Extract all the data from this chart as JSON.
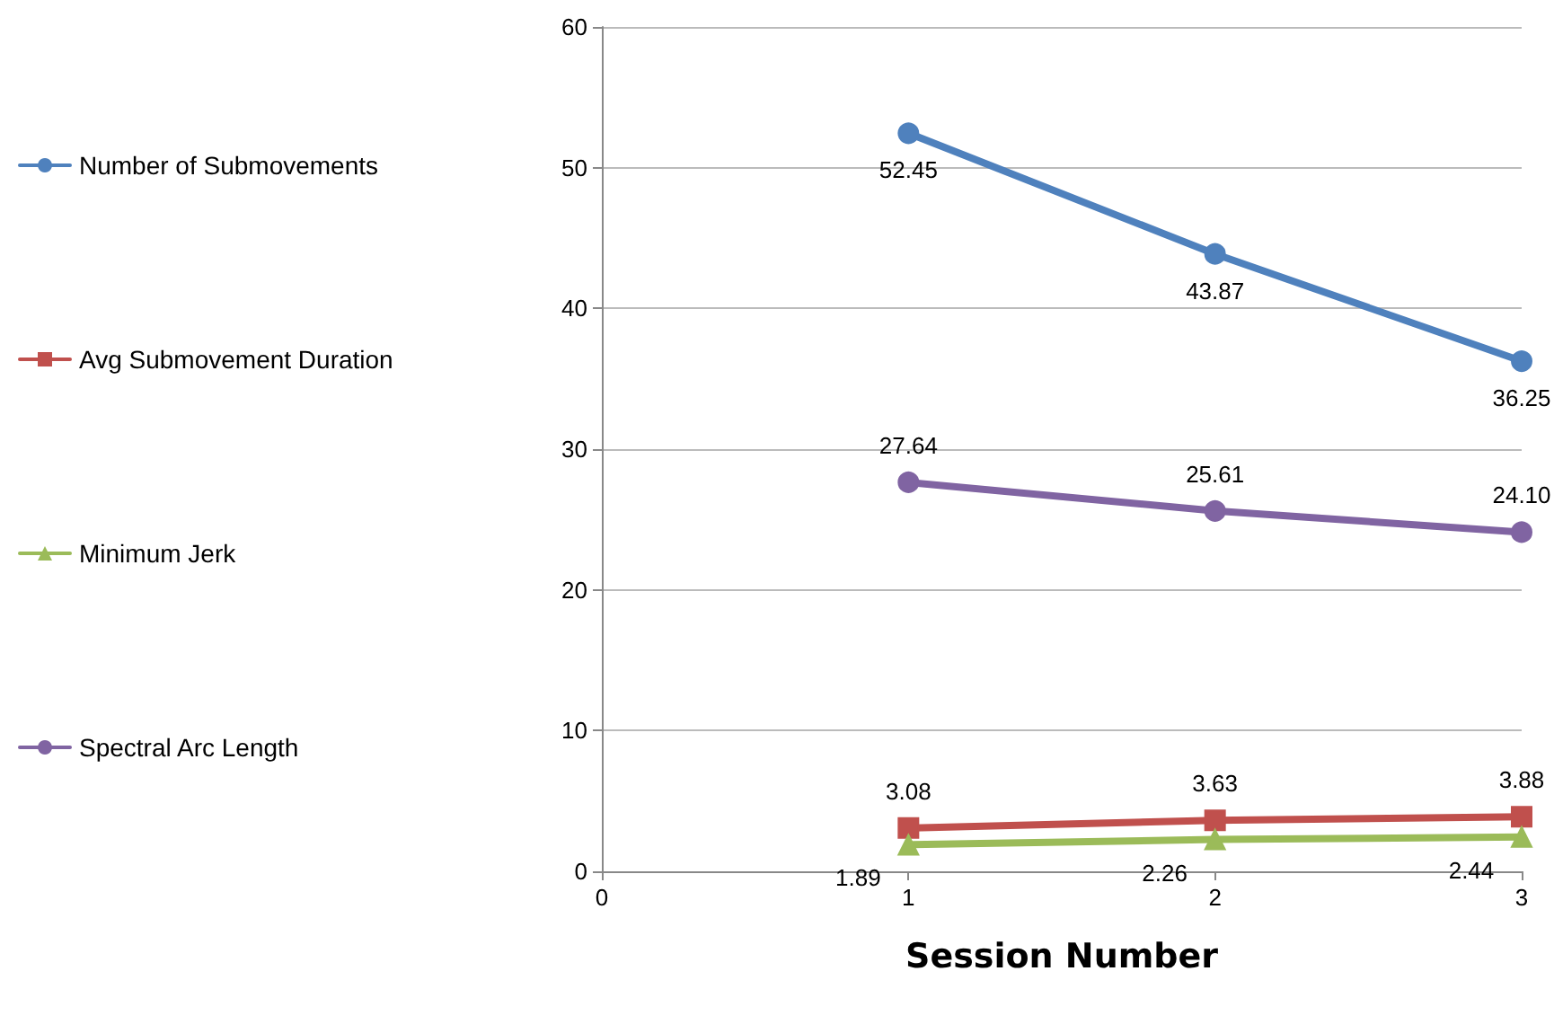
{
  "chart_data": {
    "type": "line",
    "xlabel": "Session Number",
    "x": [
      1,
      2,
      3
    ],
    "xlim": [
      0,
      3
    ],
    "xticks": [
      0,
      1,
      2,
      3
    ],
    "ylim": [
      0,
      60
    ],
    "yticks": [
      0,
      10,
      20,
      30,
      40,
      50,
      60
    ],
    "grid": "y",
    "legend": "left",
    "series": [
      {
        "name": "Number of Submovements",
        "color": "#4f81bd",
        "marker": "circle",
        "values": [
          52.45,
          43.87,
          36.25
        ],
        "value_labels": [
          "52.45",
          "43.87",
          "36.25"
        ]
      },
      {
        "name": "Avg Submovement Duration",
        "color": "#c0504d",
        "marker": "square",
        "values": [
          3.08,
          3.63,
          3.88
        ],
        "value_labels": [
          "3.08",
          "3.63",
          "3.88"
        ]
      },
      {
        "name": "Minimum Jerk",
        "color": "#9bbb59",
        "marker": "triangle",
        "values": [
          1.89,
          2.26,
          2.44
        ],
        "value_labels": [
          "1.89",
          "2.26",
          "2.44"
        ]
      },
      {
        "name": "Spectral Arc Length",
        "color": "#8064a2",
        "marker": "circle",
        "values": [
          27.64,
          25.61,
          24.1
        ],
        "value_labels": [
          "27.64",
          "25.61",
          "24.10"
        ]
      }
    ]
  }
}
